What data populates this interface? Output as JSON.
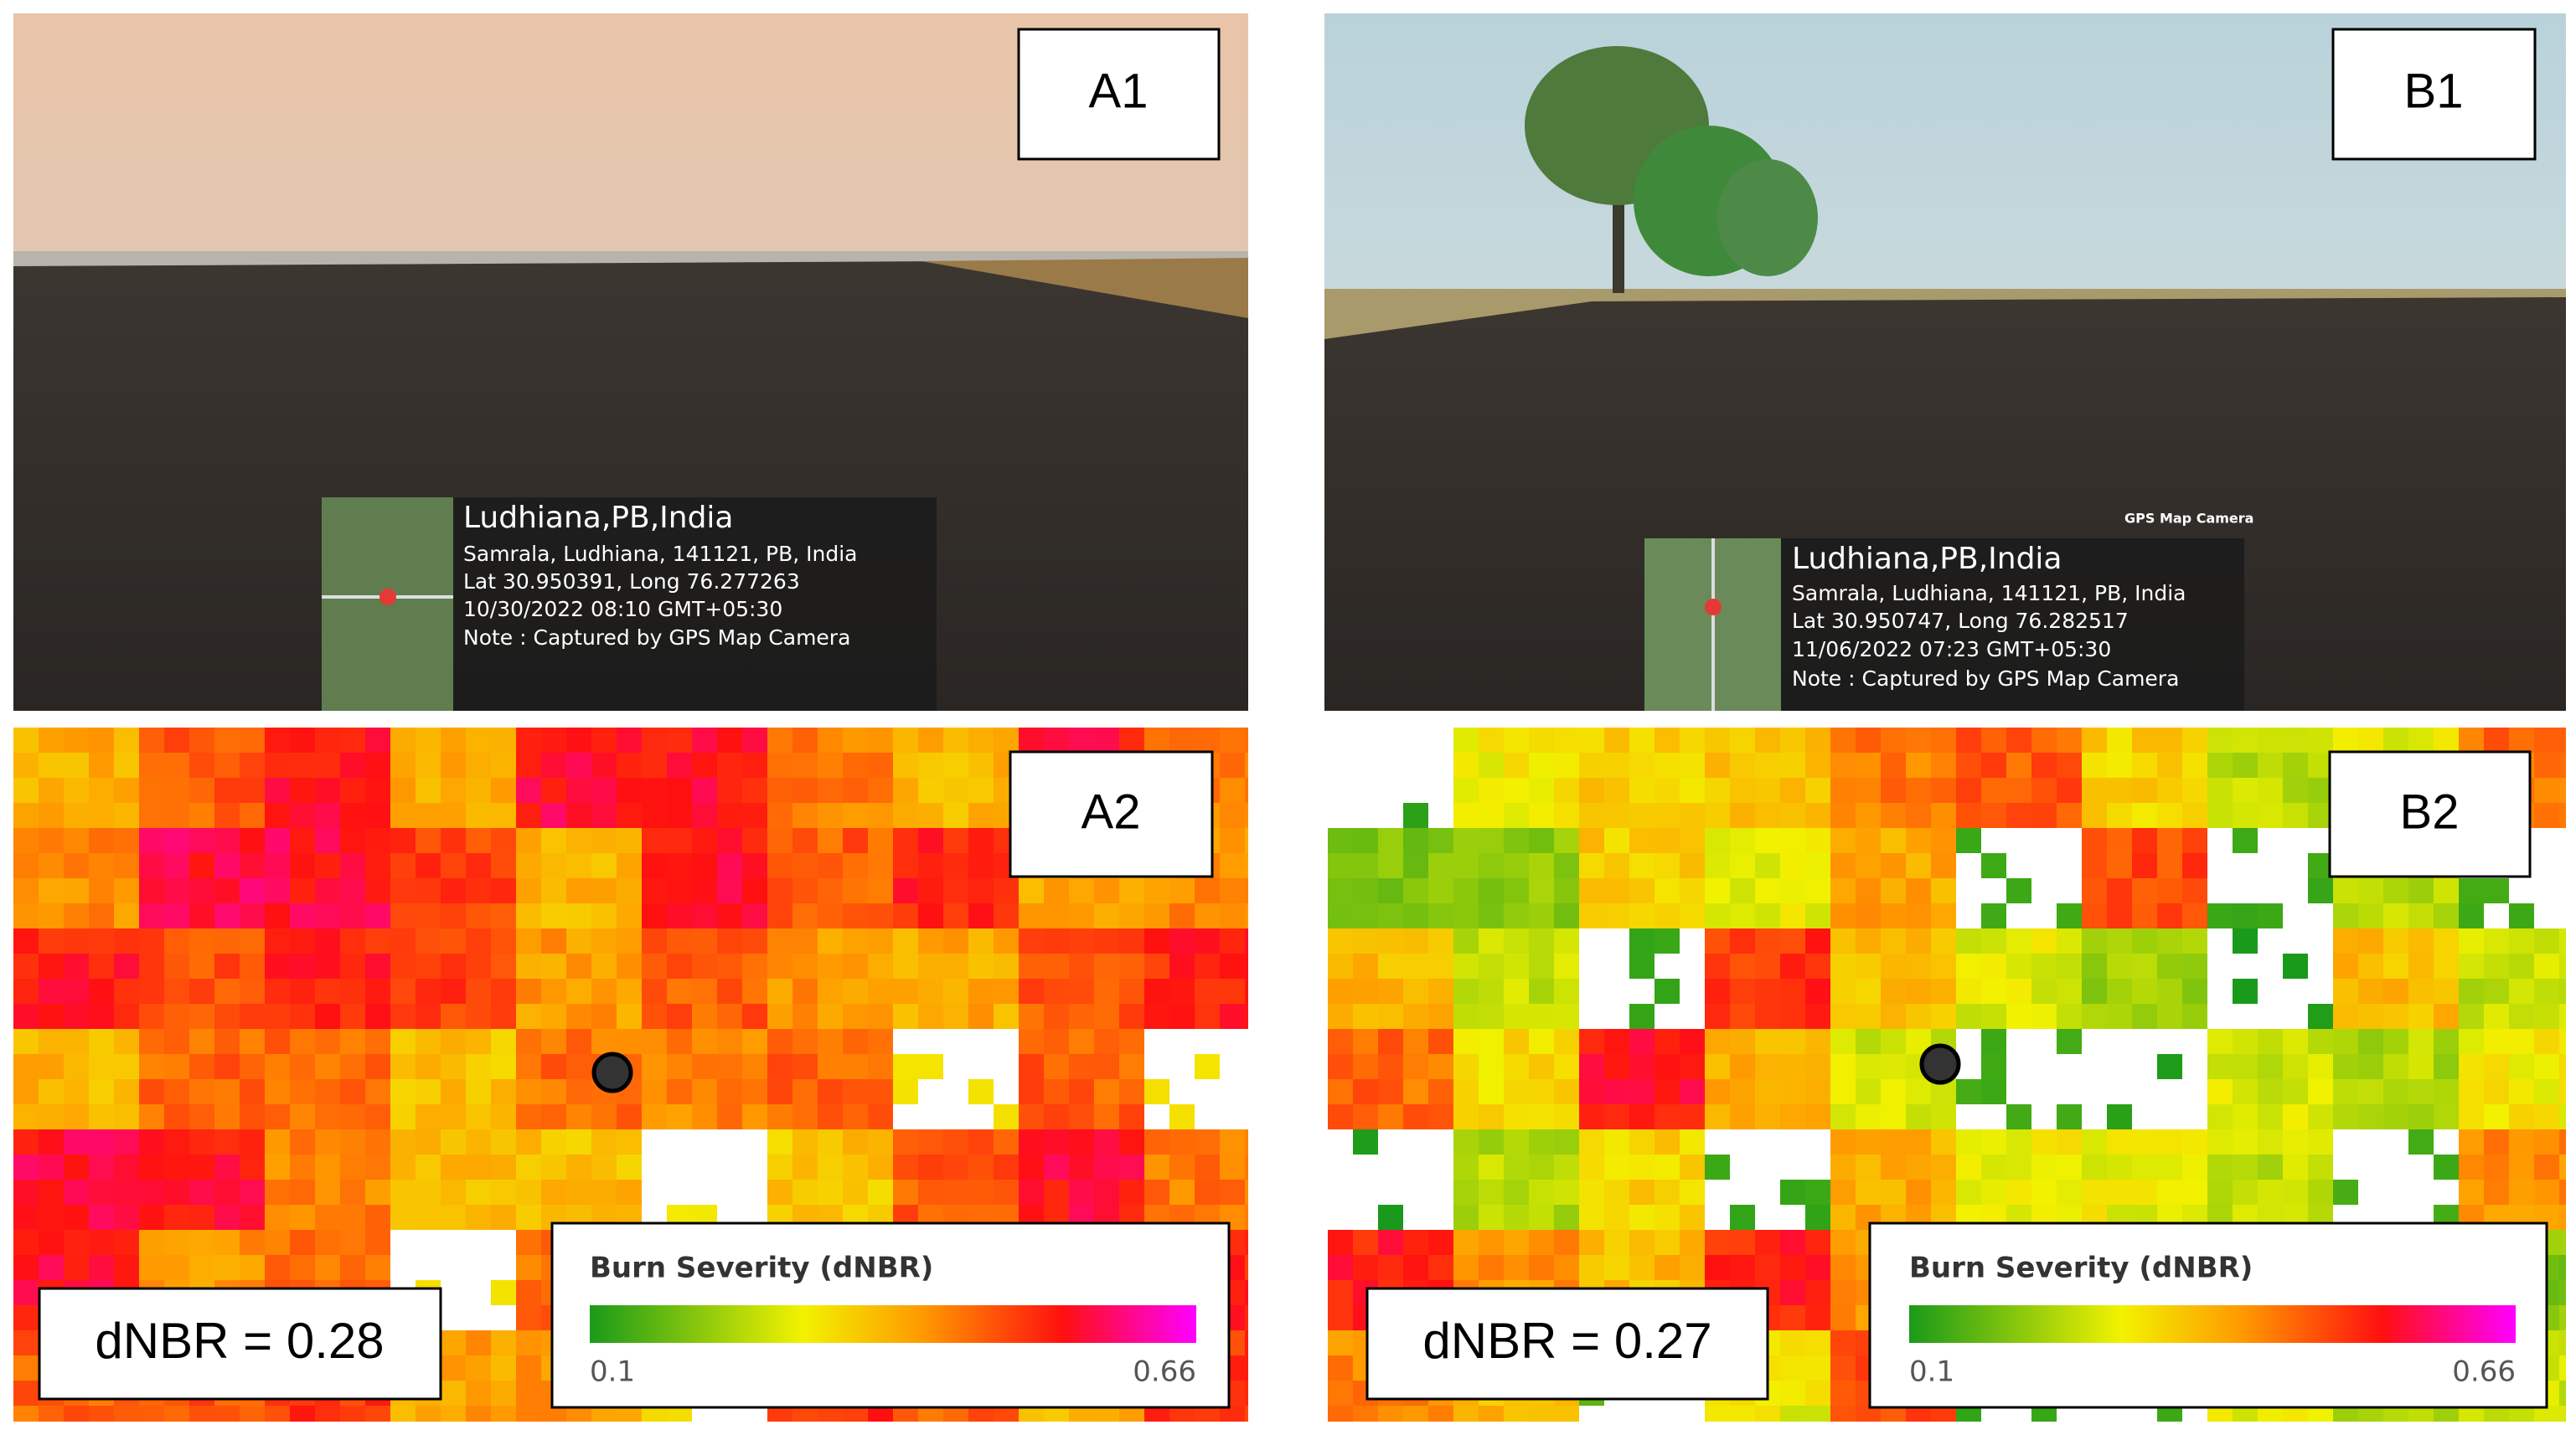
{
  "panels": [
    {
      "label": "A1",
      "location": "Ludhiana,PB,India",
      "address": "Samrala, Ludhiana, 141121, PB, India",
      "coordinates": "Lat 30.950391, Long 76.277263",
      "timestamp": "10/30/2022 08:10 GMT+05:30",
      "note": "Note : Captured by GPS Map Camera"
    },
    {
      "label": "B1",
      "app": "GPS Map Camera",
      "location": "Ludhiana,PB,India",
      "address": "Samrala, Ludhiana, 141121, PB, India",
      "coordinates": "Lat 30.950747, Long 76.282517",
      "timestamp": "11/06/2022 07:23 GMT+05:30",
      "note": "Note : Captured by GPS Map Camera"
    },
    {
      "label": "A2",
      "dnbr": "dNBR = 0.28",
      "legend": {
        "title": "Burn Severity (dNBR)",
        "min": 0.1,
        "max": 0.66
      }
    },
    {
      "label": "B2",
      "dnbr": "dNBR = 0.27",
      "legend": {
        "title": "Burn Severity (dNBR)",
        "min": 0.1,
        "max": 0.66
      }
    }
  ]
}
